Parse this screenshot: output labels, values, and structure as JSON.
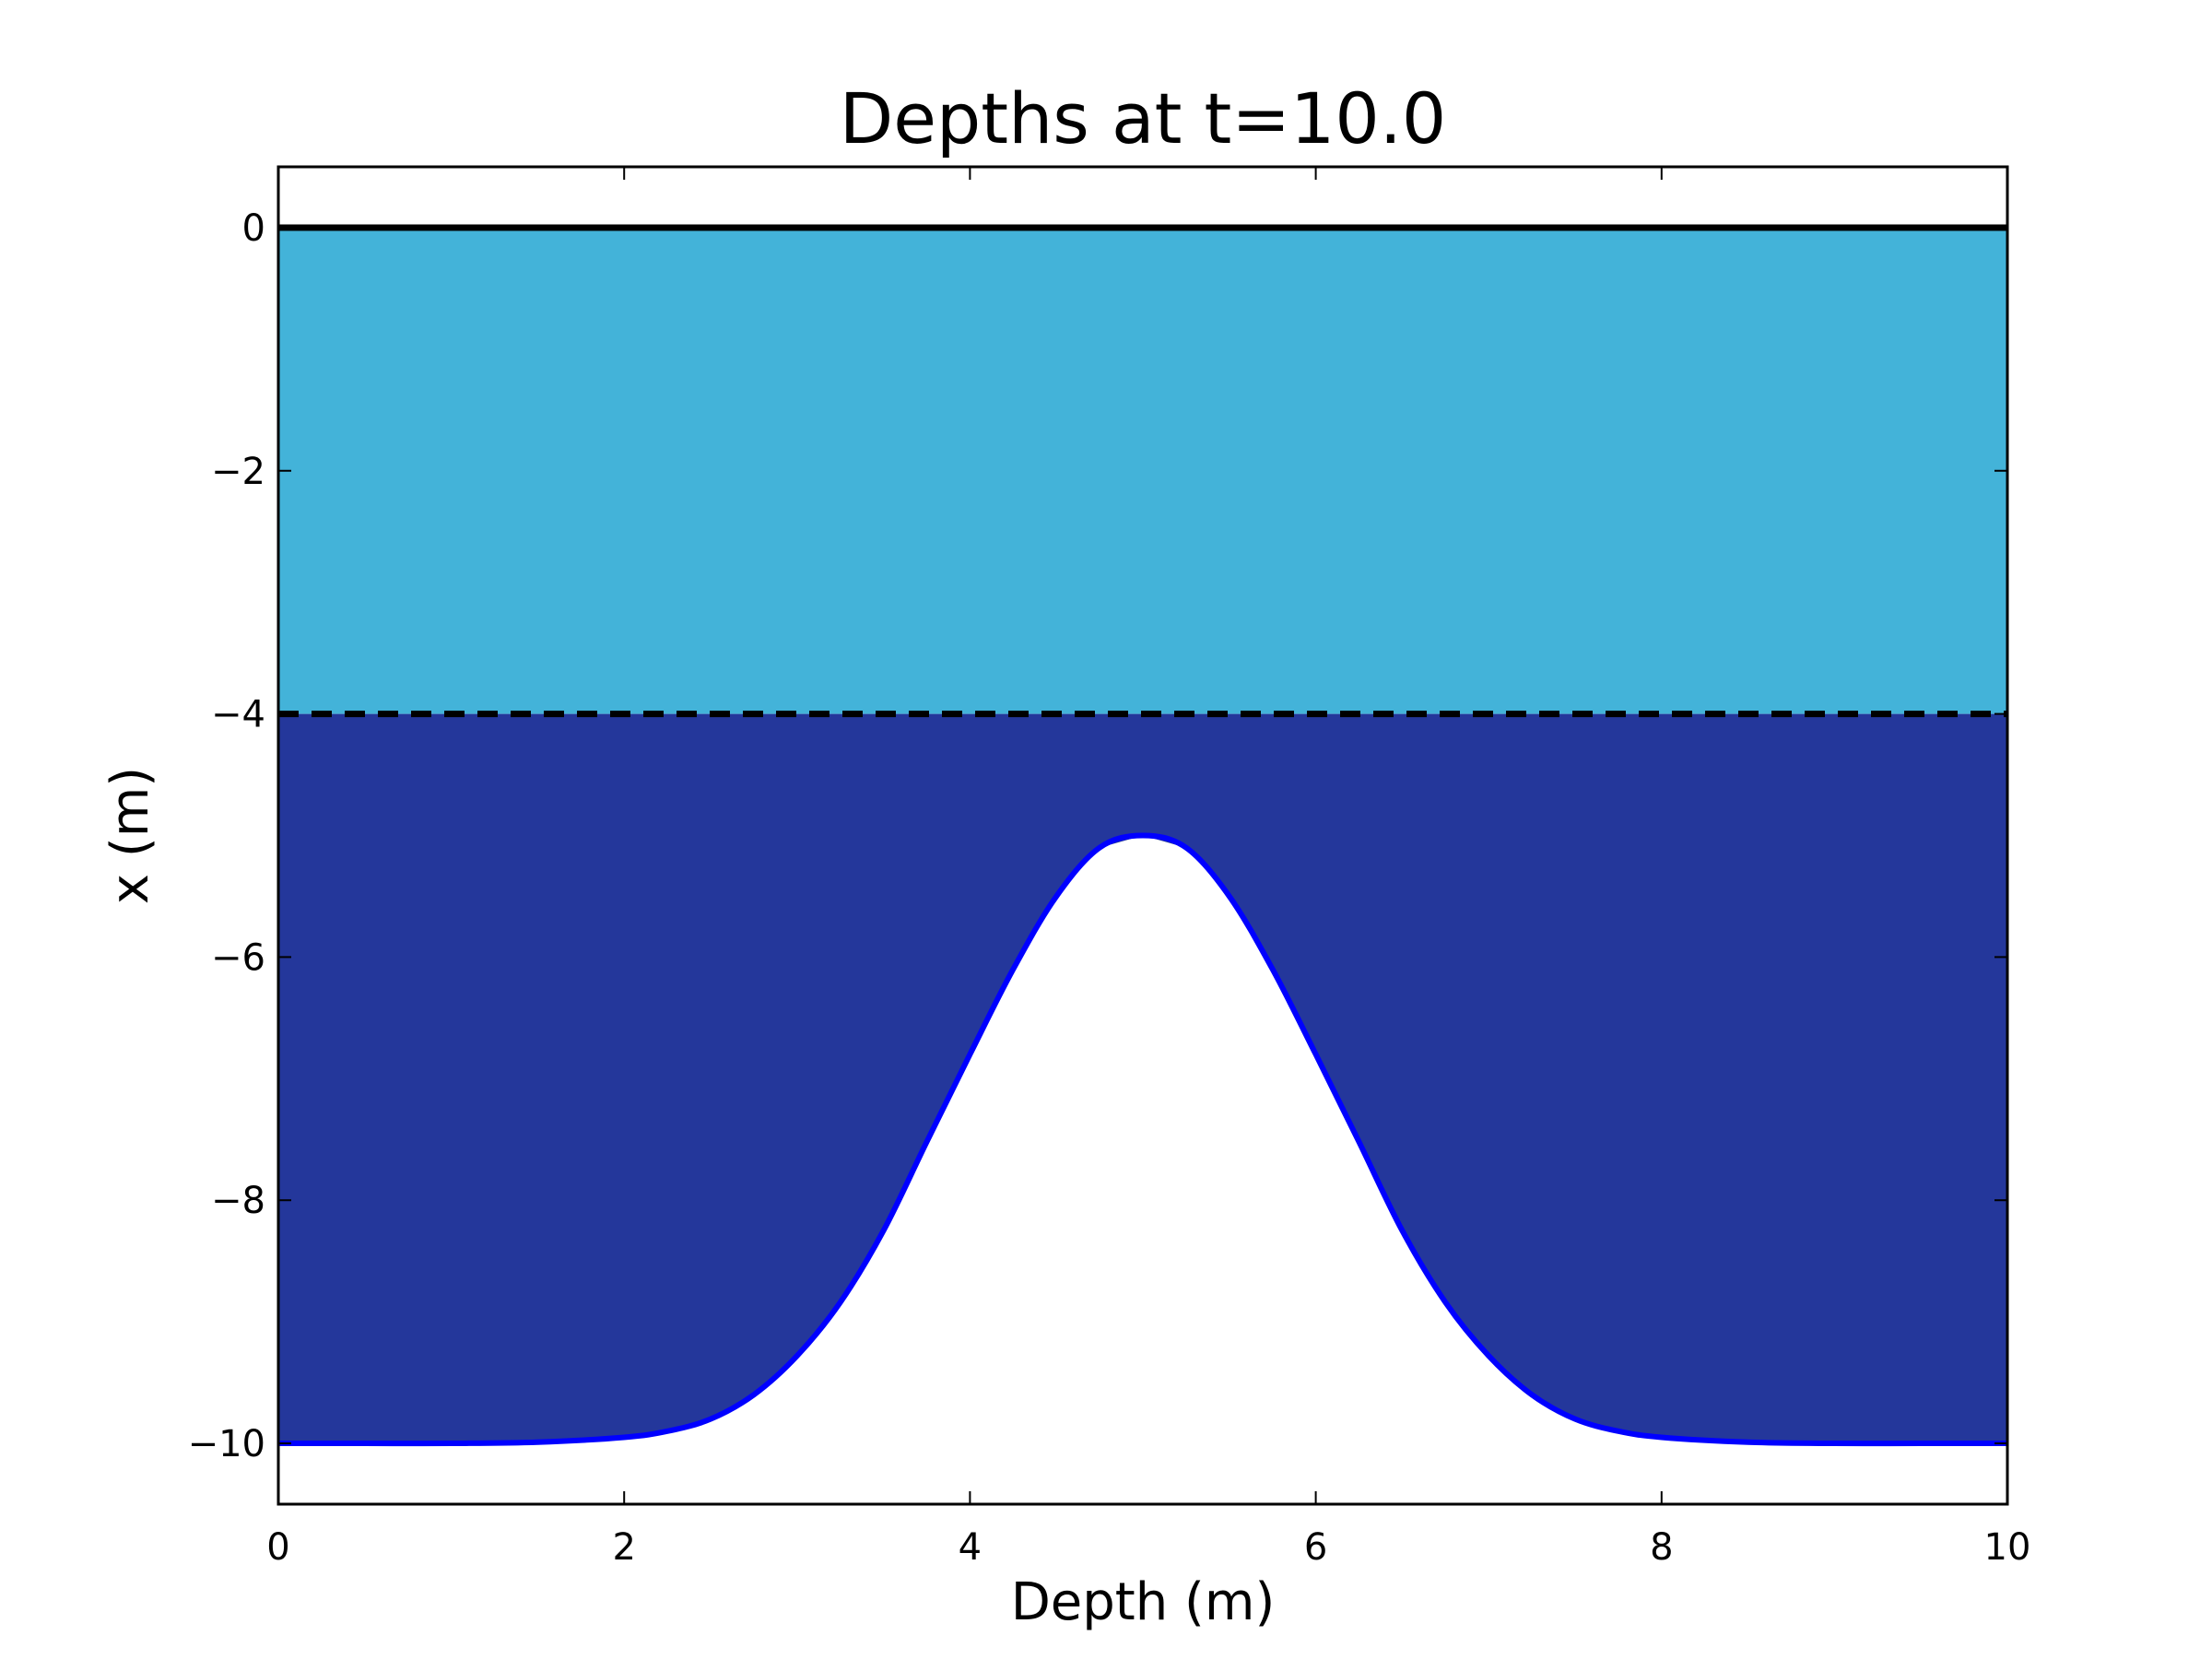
{
  "chart_data": {
    "type": "area",
    "title": "Depths at t=10.0",
    "xlabel": "Depth (m)",
    "ylabel": "x (m)",
    "xlim": [
      0,
      10
    ],
    "ylim": [
      -10.5,
      0.5
    ],
    "xticks": [
      0,
      2,
      4,
      6,
      8,
      10
    ],
    "xtick_labels": [
      "0",
      "2",
      "4",
      "6",
      "8",
      "10"
    ],
    "yticks": [
      0,
      -2,
      -4,
      -6,
      -8,
      -10
    ],
    "ytick_labels": [
      "0",
      "−2",
      "−4",
      "−6",
      "−8",
      "−10"
    ],
    "grid": false,
    "colors": {
      "upper_layer": "#43b3d9",
      "lower_layer": "#24379b",
      "bathymetry_line": "#0000ff",
      "surface_line": "#000000",
      "interface_line": "#000000"
    },
    "series": [
      {
        "x": [
          0,
          10
        ],
        "y": [
          0,
          0
        ],
        "style": "solid"
      },
      {
        "x": [
          0,
          10
        ],
        "y": [
          -4,
          -4
        ],
        "style": "dashed"
      },
      {
        "x": [
          0,
          0.5,
          1,
          1.5,
          2,
          2.25,
          2.5,
          2.75,
          3,
          3.25,
          3.5,
          3.75,
          4,
          4.25,
          4.5,
          4.75,
          5,
          5.25,
          5.5,
          5.75,
          6,
          6.25,
          6.5,
          6.75,
          7,
          7.25,
          7.5,
          7.75,
          8,
          8.5,
          9,
          9.5,
          10
        ],
        "y": [
          -10,
          -10,
          -10,
          -9.99,
          -9.95,
          -9.9,
          -9.8,
          -9.6,
          -9.28,
          -8.84,
          -8.25,
          -7.52,
          -6.8,
          -6.1,
          -5.5,
          -5.1,
          -5,
          -5.1,
          -5.5,
          -6.1,
          -6.8,
          -7.52,
          -8.25,
          -8.84,
          -9.28,
          -9.6,
          -9.8,
          -9.9,
          -9.95,
          -9.99,
          -10,
          -10,
          -10
        ],
        "style": "solid"
      }
    ]
  }
}
